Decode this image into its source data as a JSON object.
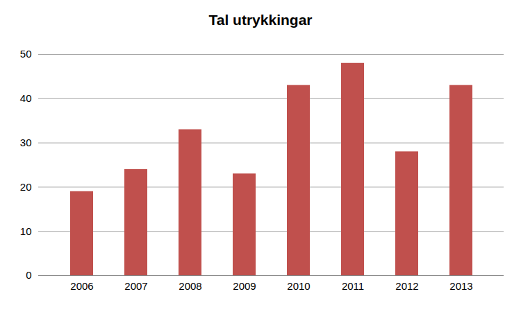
{
  "chart_data": {
    "type": "bar",
    "title": "Tal utrykkingar",
    "categories": [
      "2006",
      "2007",
      "2008",
      "2009",
      "2010",
      "2011",
      "2012",
      "2013"
    ],
    "values": [
      19,
      24,
      33,
      23,
      43,
      48,
      28,
      43
    ],
    "color": "#c0504d",
    "ylim": [
      0,
      50
    ],
    "yticks": [
      0,
      10,
      20,
      30,
      40,
      50
    ],
    "grid": true
  }
}
